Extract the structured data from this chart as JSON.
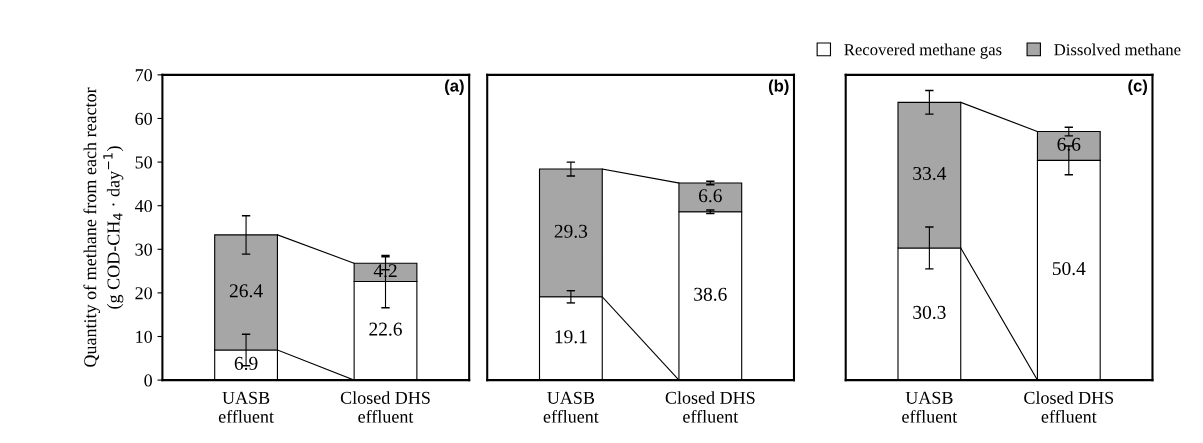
{
  "chart_data": [
    {
      "type": "bar",
      "stacked": true,
      "title": "(a)",
      "ylabel": "Quantity of methane from each reactor\n(g COD-CH$_{4}$ · day$^{−1}$)",
      "categories": [
        "UASB\neffluent",
        "Closed DHS\neffluent"
      ],
      "ylim": [
        0,
        70
      ],
      "yticks": [
        0,
        10,
        20,
        30,
        40,
        50,
        60,
        70
      ],
      "data_labels": true,
      "series": [
        {
          "color": "#ffffff",
          "values": [
            6.9,
            22.6
          ],
          "errors": [
            3.6,
            6.0
          ]
        },
        {
          "color": "#a6a6a6",
          "values": [
            26.4,
            4.2
          ],
          "errors": [
            4.4,
            1.5
          ]
        }
      ]
    },
    {
      "type": "bar",
      "stacked": true,
      "title": "(b)",
      "categories": [
        "UASB\neffluent",
        "Closed DHS\neffluent"
      ],
      "ylim": [
        0,
        70
      ],
      "yticks": [
        0,
        10,
        20,
        30,
        40,
        50,
        60,
        70
      ],
      "tick_labels": "x",
      "data_labels": true,
      "series": [
        {
          "color": "#ffffff",
          "values": [
            19.1,
            38.6
          ],
          "errors": [
            1.4,
            0.4
          ]
        },
        {
          "color": "#a6a6a6",
          "values": [
            29.3,
            6.6
          ],
          "errors": [
            1.6,
            0.4
          ]
        }
      ]
    },
    {
      "type": "bar",
      "stacked": true,
      "title": "(c)",
      "categories": [
        "UASB\neffluent",
        "Closed DHS\neffluent"
      ],
      "ylim": [
        0,
        70
      ],
      "yticks": [
        0,
        10,
        20,
        30,
        40,
        50,
        60,
        70
      ],
      "tick_labels": "x",
      "data_labels": true,
      "legend": "top",
      "series": [
        {
          "name": "Recovered methane gas",
          "color": "#ffffff",
          "values": [
            30.3,
            50.4
          ],
          "errors": [
            4.8,
            3.3
          ]
        },
        {
          "name": "Dissolved methane",
          "color": "#a6a6a6",
          "values": [
            33.4,
            6.6
          ],
          "errors": [
            2.7,
            1.0
          ]
        }
      ]
    }
  ]
}
